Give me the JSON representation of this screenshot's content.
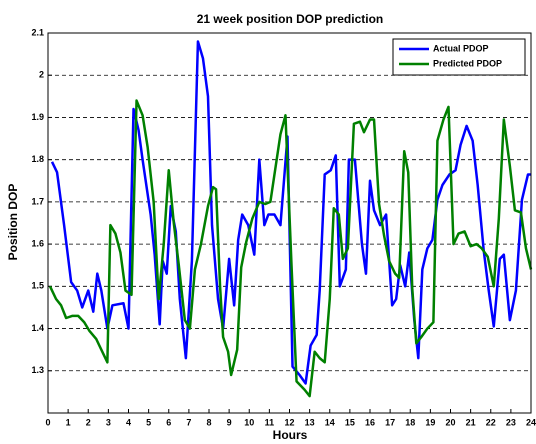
{
  "chart_data": {
    "type": "line",
    "title": "21 week position DOP prediction",
    "x_label": "Hours",
    "y_label": "Position DOP",
    "xlim": [
      0,
      24
    ],
    "xticks": [
      0,
      1,
      2,
      3,
      4,
      5,
      6,
      7,
      8,
      9,
      10,
      11,
      12,
      13,
      14,
      15,
      16,
      17,
      18,
      19,
      20,
      21,
      22,
      23,
      24
    ],
    "ylim": [
      1.2,
      2.1
    ],
    "yticks": [
      1.3,
      1.4,
      1.5,
      1.6,
      1.7,
      1.8,
      1.9,
      2,
      2.1
    ],
    "grid": true,
    "legend": "upper right",
    "series": [
      {
        "name": "Actual PDOP",
        "color": "#0000ff",
        "x": [
          0.2,
          0.45,
          0.8,
          1.15,
          1.45,
          1.7,
          2.0,
          2.25,
          2.45,
          2.65,
          2.95,
          3.2,
          3.75,
          4.0,
          4.25,
          4.5,
          4.7,
          5.1,
          5.3,
          5.55,
          5.7,
          5.9,
          6.1,
          6.35,
          6.55,
          6.85,
          7.15,
          7.45,
          7.7,
          7.95,
          8.15,
          8.45,
          8.7,
          9.0,
          9.25,
          9.45,
          9.65,
          9.95,
          10.25,
          10.5,
          10.75,
          10.95,
          11.25,
          11.55,
          11.9,
          12.15,
          12.5,
          12.8,
          13.05,
          13.35,
          13.5,
          13.75,
          14.05,
          14.3,
          14.5,
          14.8,
          14.95,
          15.25,
          15.6,
          15.8,
          16.0,
          16.2,
          16.5,
          16.8,
          17.1,
          17.3,
          17.5,
          17.75,
          17.95,
          18.2,
          18.4,
          18.6,
          18.85,
          19.1,
          19.35,
          19.6,
          19.95,
          20.25,
          20.5,
          20.8,
          21.1,
          21.35,
          21.65,
          21.9,
          22.15,
          22.45,
          22.65,
          22.95,
          23.25,
          23.55,
          23.85,
          24
        ],
        "values": [
          1.795,
          1.77,
          1.645,
          1.51,
          1.49,
          1.45,
          1.49,
          1.44,
          1.53,
          1.49,
          1.4,
          1.455,
          1.46,
          1.4,
          1.92,
          1.87,
          1.8,
          1.67,
          1.575,
          1.41,
          1.56,
          1.53,
          1.69,
          1.63,
          1.47,
          1.33,
          1.56,
          2.08,
          2.04,
          1.95,
          1.645,
          1.47,
          1.4,
          1.565,
          1.455,
          1.61,
          1.67,
          1.645,
          1.575,
          1.8,
          1.645,
          1.67,
          1.67,
          1.645,
          1.855,
          1.31,
          1.29,
          1.27,
          1.36,
          1.385,
          1.49,
          1.765,
          1.775,
          1.81,
          1.5,
          1.54,
          1.8,
          1.8,
          1.6,
          1.53,
          1.75,
          1.68,
          1.645,
          1.67,
          1.455,
          1.47,
          1.55,
          1.5,
          1.58,
          1.42,
          1.33,
          1.54,
          1.59,
          1.61,
          1.705,
          1.74,
          1.765,
          1.775,
          1.835,
          1.88,
          1.845,
          1.74,
          1.585,
          1.49,
          1.405,
          1.565,
          1.575,
          1.42,
          1.49,
          1.705,
          1.765,
          1.765
        ]
      },
      {
        "name": "Predicted PDOP",
        "color": "#008000",
        "x": [
          0.1,
          0.4,
          0.65,
          0.9,
          1.2,
          1.5,
          1.8,
          2.05,
          2.4,
          2.7,
          2.95,
          3.1,
          3.35,
          3.6,
          3.85,
          4.15,
          4.4,
          4.7,
          4.95,
          5.25,
          5.5,
          5.75,
          6.0,
          6.25,
          6.5,
          6.8,
          7.05,
          7.3,
          7.6,
          7.95,
          8.2,
          8.35,
          8.55,
          8.7,
          8.95,
          9.1,
          9.4,
          9.6,
          9.85,
          10.15,
          10.5,
          10.8,
          11.05,
          11.3,
          11.55,
          11.8,
          12.1,
          12.35,
          12.75,
          13.0,
          13.25,
          13.5,
          13.75,
          14.0,
          14.2,
          14.45,
          14.65,
          14.9,
          15.2,
          15.5,
          15.7,
          16.0,
          16.2,
          16.45,
          16.7,
          16.95,
          17.25,
          17.45,
          17.7,
          17.9,
          18.1,
          18.3,
          18.55,
          18.85,
          19.15,
          19.35,
          19.65,
          19.9,
          20.15,
          20.4,
          20.7,
          21.0,
          21.3,
          21.55,
          21.85,
          22.15,
          22.4,
          22.65,
          22.95,
          23.2,
          23.5,
          23.75,
          24
        ],
        "values": [
          1.5,
          1.47,
          1.455,
          1.425,
          1.43,
          1.43,
          1.415,
          1.395,
          1.375,
          1.345,
          1.32,
          1.645,
          1.625,
          1.58,
          1.49,
          1.48,
          1.94,
          1.905,
          1.83,
          1.7,
          1.47,
          1.6,
          1.775,
          1.65,
          1.55,
          1.42,
          1.4,
          1.54,
          1.6,
          1.69,
          1.735,
          1.73,
          1.5,
          1.38,
          1.345,
          1.29,
          1.35,
          1.545,
          1.605,
          1.66,
          1.7,
          1.695,
          1.7,
          1.78,
          1.86,
          1.905,
          1.55,
          1.275,
          1.255,
          1.24,
          1.345,
          1.33,
          1.32,
          1.47,
          1.685,
          1.67,
          1.565,
          1.59,
          1.885,
          1.89,
          1.865,
          1.895,
          1.895,
          1.695,
          1.62,
          1.56,
          1.53,
          1.52,
          1.82,
          1.77,
          1.495,
          1.365,
          1.38,
          1.4,
          1.415,
          1.845,
          1.895,
          1.925,
          1.6,
          1.625,
          1.63,
          1.595,
          1.6,
          1.59,
          1.57,
          1.5,
          1.66,
          1.895,
          1.785,
          1.68,
          1.675,
          1.59,
          1.54
        ]
      }
    ]
  }
}
